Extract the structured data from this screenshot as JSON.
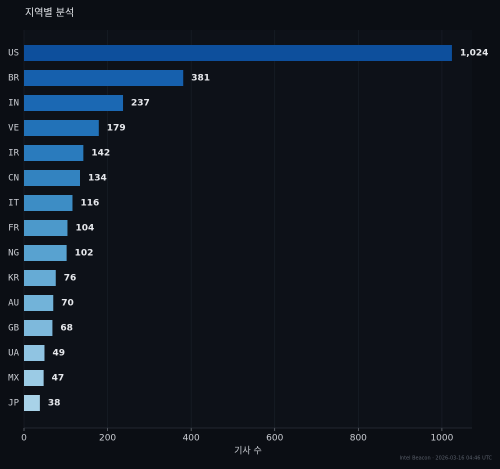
{
  "chart_data": {
    "type": "barh",
    "title": "지역별 분석",
    "x_label": "기사 수",
    "footer": "Intel Beacon · 2026-03-16 04:46 UTC",
    "categories": [
      "US",
      "BR",
      "IN",
      "VE",
      "IR",
      "CN",
      "IT",
      "FR",
      "NG",
      "KR",
      "AU",
      "GB",
      "UA",
      "MX",
      "JP"
    ],
    "values": [
      1024,
      381,
      237,
      179,
      142,
      134,
      116,
      104,
      102,
      76,
      70,
      68,
      49,
      47,
      38
    ],
    "value_labels": [
      "1,024",
      "381",
      "237",
      "179",
      "142",
      "134",
      "116",
      "104",
      "102",
      "76",
      "70",
      "68",
      "49",
      "47",
      "38"
    ],
    "colors": [
      "#0d4f9c",
      "#1660ad",
      "#1b68b3",
      "#2272b8",
      "#2a7bbd",
      "#3383c0",
      "#3d8dc5",
      "#4c99cb",
      "#58a2d0",
      "#66abd5",
      "#72b3d9",
      "#7eb9dc",
      "#90c4e2",
      "#9bcbe5",
      "#a8d2e8"
    ],
    "xlim": [
      0,
      1072
    ],
    "xticks": [
      0,
      200,
      400,
      600,
      800,
      1000
    ],
    "grid": true
  }
}
